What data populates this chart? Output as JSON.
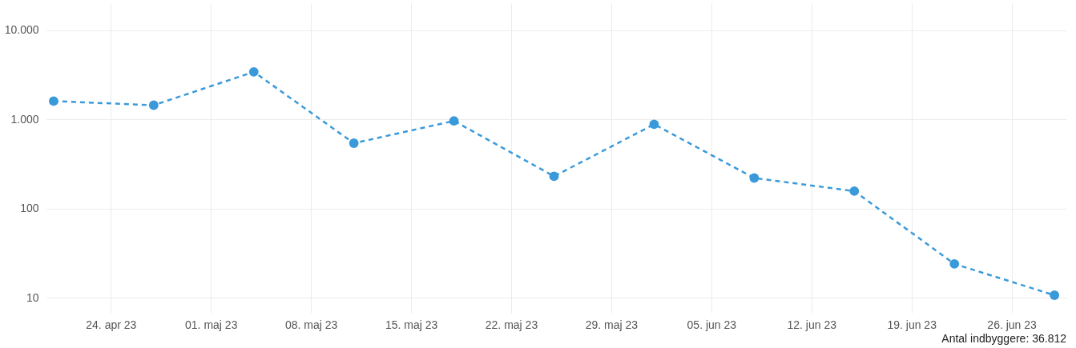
{
  "chart_data": {
    "type": "line",
    "x": [
      "--04-20",
      "--04-27",
      "--05-04",
      "--05-11",
      "--05-18",
      "--05-25",
      "--06-01",
      "--06-08",
      "--06-15",
      "--06-22",
      "--06-29"
    ],
    "series": [
      {
        "color": "#3a9ad9",
        "values": [
          1600,
          1440,
          3400,
          540,
          960,
          230,
          880,
          220,
          157,
          24,
          10.7
        ]
      }
    ],
    "log": "y",
    "ylim": [
      6.8,
      20000
    ],
    "yticks": [
      {
        "value": 10,
        "label": "10"
      },
      {
        "value": 100,
        "label": "100"
      },
      {
        "value": 1000,
        "label": "1.000"
      },
      {
        "value": 10000,
        "label": "10.000"
      }
    ],
    "xlim": [
      "--04-19T12:00",
      "--06-29T20:00"
    ],
    "xticks": [
      {
        "value": "--04-24",
        "label": "24. apr 23"
      },
      {
        "value": "--05-01",
        "label": "01. maj 23"
      },
      {
        "value": "--05-08",
        "label": "08. maj 23"
      },
      {
        "value": "--05-15",
        "label": "15. maj 23"
      },
      {
        "value": "--05-22",
        "label": "22. maj 23"
      },
      {
        "value": "--05-29",
        "label": "29. maj 23"
      },
      {
        "value": "--06-05",
        "label": "05. jun 23"
      },
      {
        "value": "--06-12",
        "label": "12. jun 23"
      },
      {
        "value": "--06-19",
        "label": "19. jun 23"
      },
      {
        "value": "--06-26",
        "label": "26. jun 23"
      }
    ],
    "grid": true,
    "marker": "circle",
    "line_style": "dashed",
    "annotations": [
      "Antal indbyggere: 36.812"
    ]
  }
}
